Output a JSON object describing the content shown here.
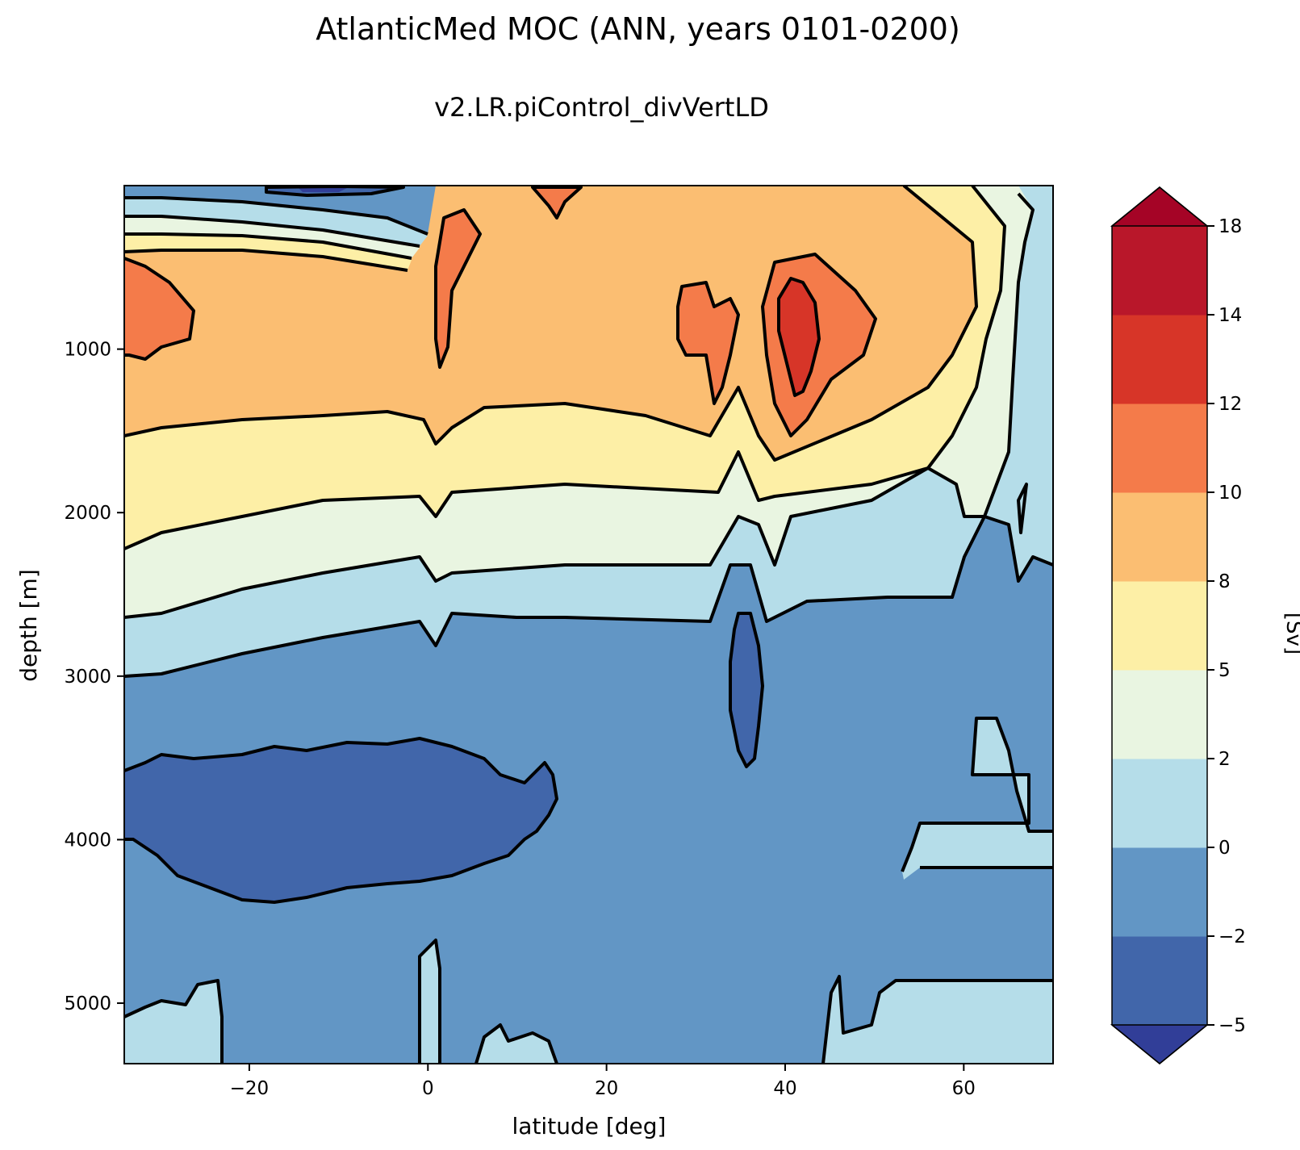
{
  "chart_data": {
    "type": "contourf",
    "title": "AtlanticMed MOC (ANN, years 0101-0200)",
    "subtitle": "v2.LR.piControl_divVertLD",
    "xlabel": "latitude [deg]",
    "ylabel": "depth [m]",
    "xlim": [
      -34,
      70
    ],
    "ylim": [
      5370,
      0
    ],
    "x_ticks": [
      -20,
      0,
      20,
      40,
      60
    ],
    "x_tick_labels": [
      "−20",
      "0",
      "20",
      "40",
      "60"
    ],
    "y_ticks": [
      1000,
      2000,
      3000,
      4000,
      5000
    ],
    "y_tick_labels": [
      "1000",
      "2000",
      "3000",
      "4000",
      "5000"
    ],
    "colorbar": {
      "label": "[Sv]",
      "levels": [
        -5,
        -2,
        0,
        2,
        5,
        8,
        10,
        12,
        14,
        18
      ],
      "tick_labels": [
        "−5",
        "−2",
        "0",
        "2",
        "5",
        "8",
        "10",
        "12",
        "14",
        "18"
      ],
      "colors": [
        "#4166aa",
        "#6296c5",
        "#b5dde9",
        "#e9f5e1",
        "#fdefa6",
        "#fbbe72",
        "#f47b4a",
        "#d73528",
        "#b9172a"
      ],
      "under_color": "#313e98",
      "over_color": "#a50426",
      "extend": "both"
    },
    "contour_line_color": "#000000"
  }
}
